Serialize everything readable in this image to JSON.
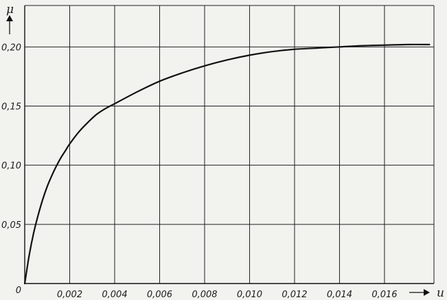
{
  "chart_data": {
    "type": "line",
    "title": "",
    "xlabel": "u",
    "ylabel": "μ",
    "xlim": [
      0,
      0.0182
    ],
    "ylim": [
      0,
      0.235
    ],
    "grid": true,
    "x_ticks": [
      0.002,
      0.004,
      0.006,
      0.008,
      0.01,
      0.012,
      0.014,
      0.016
    ],
    "x_tick_labels": [
      "0,002",
      "0,004",
      "0,006",
      "0,008",
      "0,010",
      "0,012",
      "0,014",
      "0,016"
    ],
    "y_ticks": [
      0,
      0.05,
      0.1,
      0.15,
      0.2
    ],
    "y_tick_labels": [
      "0",
      "0,05",
      "0,10",
      "0,15",
      "0,20"
    ],
    "series": [
      {
        "x": [
          0,
          0.0002,
          0.0004,
          0.0006,
          0.0008,
          0.001,
          0.0012,
          0.0014,
          0.0016,
          0.0018,
          0.002,
          0.0024,
          0.0028,
          0.0032,
          0.0036,
          0.004,
          0.005,
          0.006,
          0.007,
          0.008,
          0.009,
          0.01,
          0.011,
          0.012,
          0.013,
          0.014,
          0.015,
          0.016,
          0.017,
          0.018
        ],
        "y": [
          0,
          0.024,
          0.043,
          0.058,
          0.071,
          0.082,
          0.091,
          0.099,
          0.106,
          0.112,
          0.118,
          0.128,
          0.136,
          0.143,
          0.148,
          0.152,
          0.162,
          0.171,
          0.178,
          0.184,
          0.189,
          0.193,
          0.196,
          0.198,
          0.199,
          0.2,
          0.201,
          0.2015,
          0.202,
          0.202
        ]
      }
    ]
  }
}
